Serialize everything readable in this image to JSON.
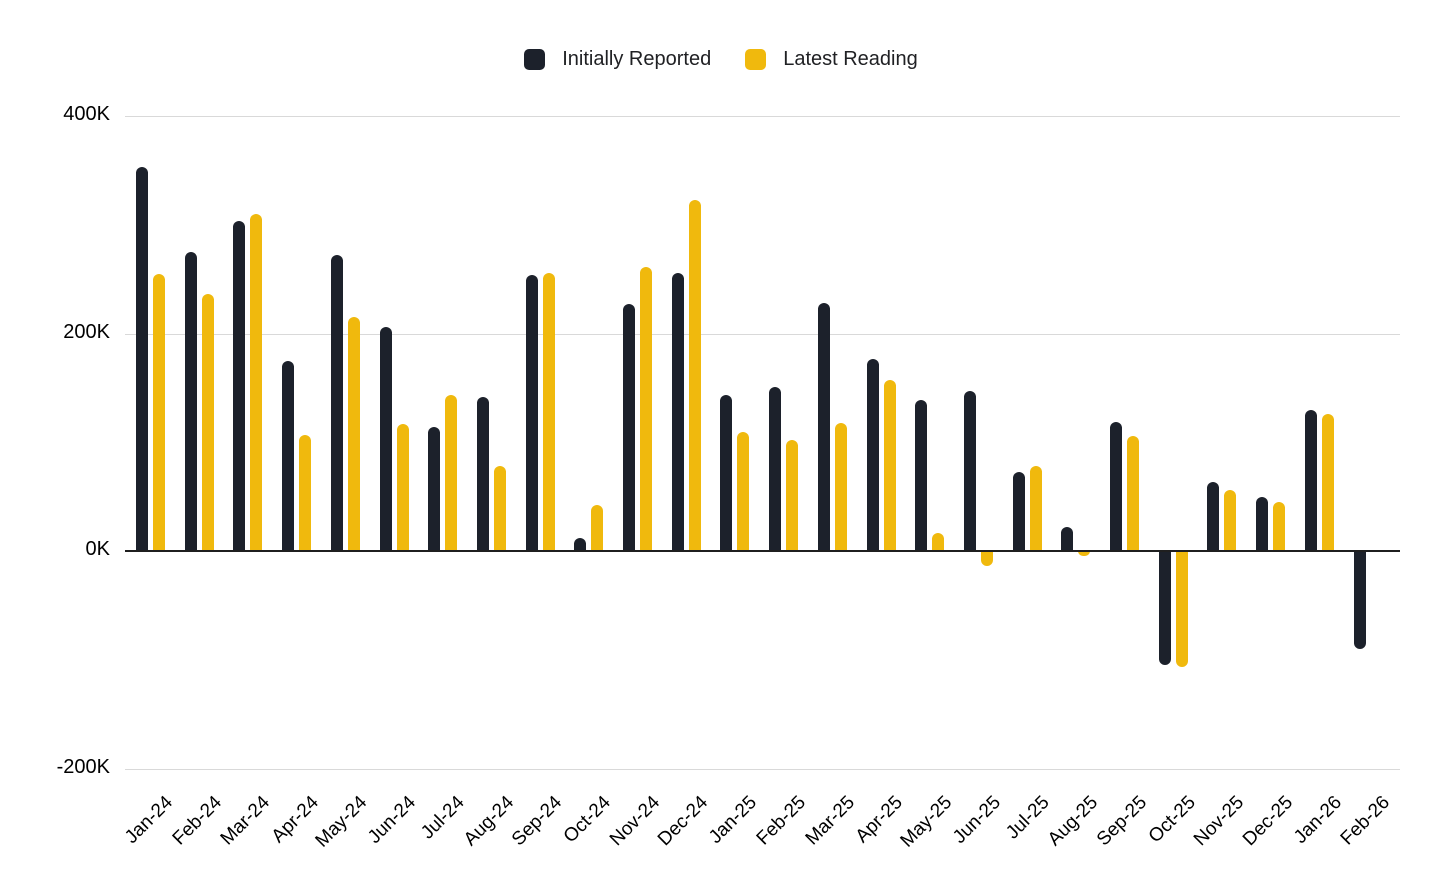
{
  "legend": {
    "items": [
      {
        "label": "Initially Reported",
        "color": "#1C212B"
      },
      {
        "label": "Latest Reading",
        "color": "#F0B90D"
      }
    ]
  },
  "chart_data": {
    "type": "bar",
    "categories": [
      "Jan-24",
      "Feb-24",
      "Mar-24",
      "Apr-24",
      "May-24",
      "Jun-24",
      "Jul-24",
      "Aug-24",
      "Sep-24",
      "Oct-24",
      "Nov-24",
      "Dec-24",
      "Jan-25",
      "Feb-25",
      "Mar-25",
      "Apr-25",
      "May-25",
      "Jun-25",
      "Jul-25",
      "Aug-25",
      "Sep-25",
      "Oct-25",
      "Nov-25",
      "Dec-25",
      "Jan-26",
      "Feb-26"
    ],
    "series": [
      {
        "name": "Initially Reported",
        "color": "#1C212B",
        "values": [
          353,
          275,
          303,
          175,
          272,
          206,
          114,
          142,
          254,
          12,
          227,
          256,
          143,
          151,
          228,
          177,
          139,
          147,
          73,
          22,
          119,
          -105,
          63,
          50,
          130,
          -90
        ]
      },
      {
        "name": "Latest Reading",
        "color": "#F0B90D",
        "values": [
          255,
          236,
          310,
          107,
          215,
          117,
          143,
          78,
          256,
          42,
          261,
          323,
          109,
          102,
          118,
          157,
          17,
          -14,
          78,
          -5,
          106,
          -107,
          56,
          45,
          126,
          null
        ]
      }
    ],
    "y_ticks": [
      {
        "label": "400K",
        "value": 400
      },
      {
        "label": "200K",
        "value": 200
      },
      {
        "label": "0K",
        "value": 0
      },
      {
        "label": "-200K",
        "value": -200
      }
    ],
    "ylim": [
      -200,
      400
    ],
    "xlabel": "",
    "ylabel": "",
    "grid": "horizontal",
    "legend_position": "top-center",
    "bar_value_unit_suffix": "K"
  }
}
